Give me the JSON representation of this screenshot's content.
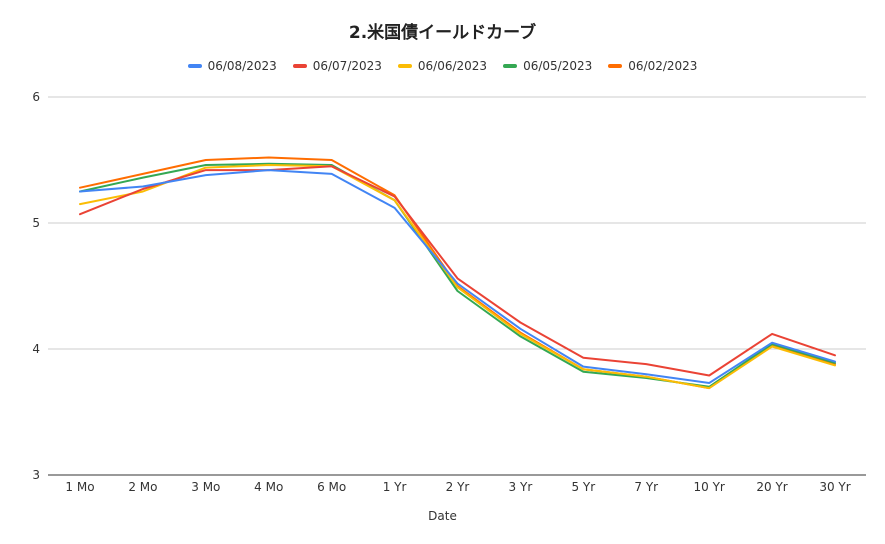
{
  "chart_data": {
    "type": "line",
    "title": "2.米国債イールドカーブ",
    "xlabel": "Date",
    "ylabel": "",
    "categories": [
      "1 Mo",
      "2 Mo",
      "3 Mo",
      "4 Mo",
      "6 Mo",
      "1 Yr",
      "2 Yr",
      "3 Yr",
      "5 Yr",
      "7 Yr",
      "10 Yr",
      "20 Yr",
      "30 Yr"
    ],
    "yticks": [
      "3",
      "4",
      "5",
      "6"
    ],
    "ylim": [
      3,
      6
    ],
    "grid": true,
    "legend_position": "top",
    "series": [
      {
        "name": "06/08/2023",
        "color": "#4285f4",
        "values": [
          5.25,
          5.29,
          5.38,
          5.42,
          5.39,
          5.12,
          4.52,
          4.16,
          3.86,
          3.8,
          3.73,
          4.05,
          3.9
        ]
      },
      {
        "name": "06/07/2023",
        "color": "#ea4335",
        "values": [
          5.07,
          5.27,
          5.42,
          5.42,
          5.45,
          5.21,
          4.56,
          4.21,
          3.93,
          3.88,
          3.79,
          4.12,
          3.95
        ]
      },
      {
        "name": "06/06/2023",
        "color": "#fbbc04",
        "values": [
          5.15,
          5.25,
          5.44,
          5.46,
          5.45,
          5.18,
          4.49,
          4.12,
          3.84,
          3.78,
          3.69,
          4.02,
          3.87
        ]
      },
      {
        "name": "06/05/2023",
        "color": "#34a853",
        "values": [
          5.25,
          5.36,
          5.46,
          5.47,
          5.46,
          5.18,
          4.46,
          4.1,
          3.82,
          3.77,
          3.7,
          4.04,
          3.89
        ]
      },
      {
        "name": "06/02/2023",
        "color": "#ff6d01",
        "values": [
          5.28,
          5.39,
          5.5,
          5.52,
          5.5,
          5.22,
          4.5,
          4.13,
          3.84,
          3.78,
          3.69,
          4.03,
          3.88
        ]
      }
    ]
  }
}
